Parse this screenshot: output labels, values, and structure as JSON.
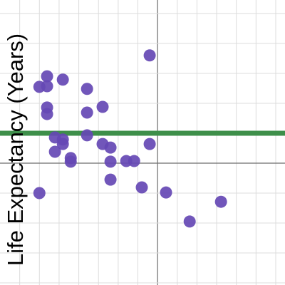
{
  "chart_data": {
    "type": "scatter",
    "y_label": "Life Expectancy (Years)",
    "x": [
      -0.4,
      -5.61,
      -6.0,
      -5.61,
      -4.81,
      -3.58,
      -5.61,
      -5.61,
      -3.58,
      -2.79,
      -5.21,
      -4.81,
      -4.81,
      -3.58,
      -2.79,
      -2.39,
      -5.21,
      -4.41,
      -4.41,
      -2.39,
      -1.59,
      -1.19,
      -0.4,
      -2.39,
      -0.8,
      0.43,
      -6.0,
      3.22,
      1.63
    ],
    "series": [
      {
        "color": "#6548b4",
        "values": [
          3.6,
          2.9,
          2.55,
          2.57,
          2.79,
          2.48,
          1.86,
          1.64,
          1.69,
          1.88,
          0.86,
          0.79,
          0.64,
          0.93,
          0.64,
          0.52,
          0.38,
          0.17,
          0.05,
          0.05,
          0.07,
          0.07,
          0.64,
          -0.55,
          -0.81,
          -0.98,
          -1.0,
          -1.29,
          -1.95
        ]
      }
    ],
    "hline": {
      "value": 1,
      "color": "#3e8f4a"
    },
    "xlim": [
      -8,
      6.47
    ],
    "ylim": [
      -4.07,
      5.45
    ],
    "xticks": [
      -7,
      -6,
      -5,
      -4,
      -3,
      -2,
      -1,
      0,
      1,
      2,
      3,
      4,
      5,
      6
    ],
    "yticks": [
      -4,
      -3,
      -2,
      -1,
      0,
      1,
      2,
      3,
      4,
      5
    ],
    "grid": true
  }
}
